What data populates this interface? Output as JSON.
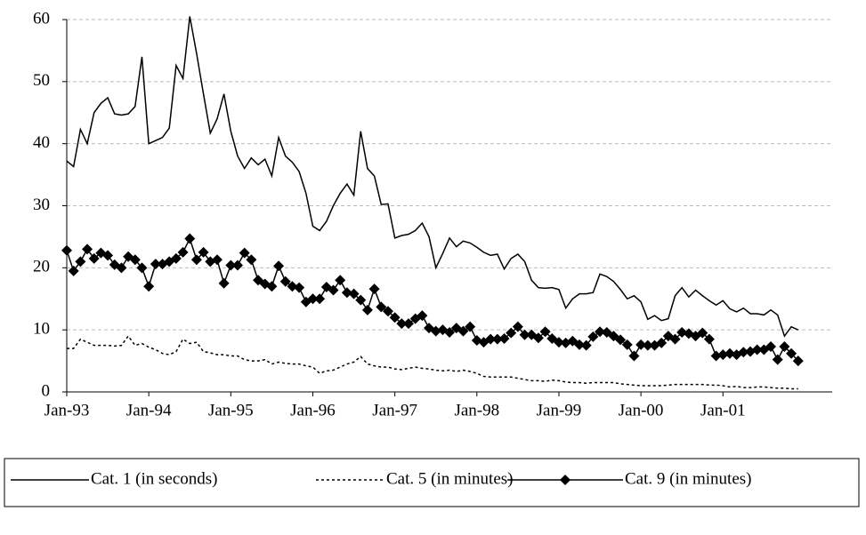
{
  "chart_data": {
    "type": "line",
    "categories": [
      "Jan-93",
      null,
      null,
      null,
      null,
      null,
      null,
      null,
      null,
      null,
      null,
      null,
      "Jan-94",
      null,
      null,
      null,
      null,
      null,
      null,
      null,
      null,
      null,
      null,
      null,
      "Jan-95",
      null,
      null,
      null,
      null,
      null,
      null,
      null,
      null,
      null,
      null,
      null,
      "Jan-96",
      null,
      null,
      null,
      null,
      null,
      null,
      null,
      null,
      null,
      null,
      null,
      "Jan-97",
      null,
      null,
      null,
      null,
      null,
      null,
      null,
      null,
      null,
      null,
      null,
      "Jan-98",
      null,
      null,
      null,
      null,
      null,
      null,
      null,
      null,
      null,
      null,
      null,
      "Jan-99",
      null,
      null,
      null,
      null,
      null,
      null,
      null,
      null,
      null,
      null,
      null,
      "Jan-00",
      null,
      null,
      null,
      null,
      null,
      null,
      null,
      null,
      null,
      null,
      null,
      "Jan-01",
      null,
      null,
      null,
      null,
      null,
      null,
      null,
      null,
      null,
      null,
      null
    ],
    "series": [
      {
        "name": "Cat. 1 (in seconds)",
        "color": "#000000",
        "dash": "solid",
        "marker": "none",
        "values": [
          37.2,
          36.3,
          42.3,
          40,
          45,
          46.5,
          47.4,
          44.8,
          44.6,
          44.8,
          46,
          54,
          40,
          40.5,
          41,
          42.5,
          52.6,
          50.5,
          60.5,
          54.5,
          48,
          41.7,
          44,
          48,
          42,
          38,
          36,
          37.7,
          36.6,
          37.5,
          34.8,
          41,
          38,
          37,
          35.5,
          32,
          26.7,
          26,
          27.5,
          30,
          32,
          33.5,
          31.7,
          42,
          36,
          34.8,
          30.2,
          30.3,
          24.8,
          25.2,
          25.4,
          26,
          27.2,
          25,
          20,
          22.3,
          24.8,
          23.4,
          24.3,
          24,
          23.3,
          22.5,
          22,
          22.2,
          19.8,
          21.5,
          22.2,
          21,
          18,
          16.8,
          16.7,
          16.8,
          16.5,
          13.5,
          15,
          15.8,
          15.8,
          16,
          19,
          18.6,
          17.8,
          16.5,
          15,
          15.5,
          14.5,
          11.7,
          12.3,
          11.5,
          11.8,
          15.5,
          16.8,
          15.3,
          16.4,
          15.5,
          14.7,
          14,
          14.7,
          13.4,
          12.9,
          13.5,
          12.6,
          12.6,
          12.4,
          13.2,
          12.4,
          9,
          10.5,
          10
        ]
      },
      {
        "name": "Cat. 5 (in minutes)",
        "color": "#000000",
        "dash": "dashed",
        "marker": "none",
        "values": [
          7,
          7,
          8.5,
          8,
          7.5,
          7.5,
          7.5,
          7.4,
          7.5,
          9,
          7.5,
          7.8,
          7.2,
          6.8,
          6.2,
          6,
          6.5,
          8.5,
          7.8,
          8,
          6.5,
          6.3,
          6,
          6,
          5.8,
          5.8,
          5.2,
          5,
          5,
          5.2,
          4.5,
          4.8,
          4.6,
          4.5,
          4.5,
          4.2,
          4,
          3,
          3.4,
          3.5,
          4,
          4.5,
          4.8,
          5.7,
          4.5,
          4.2,
          4,
          4,
          3.7,
          3.6,
          3.8,
          4,
          3.8,
          3.7,
          3.5,
          3.4,
          3.5,
          3.3,
          3.5,
          3.3,
          3,
          2.5,
          2.4,
          2.4,
          2.4,
          2.4,
          2.2,
          2,
          1.8,
          1.8,
          1.7,
          1.9,
          1.8,
          1.6,
          1.5,
          1.5,
          1.4,
          1.5,
          1.5,
          1.5,
          1.5,
          1.3,
          1.2,
          1.1,
          1,
          1,
          1,
          1,
          1.1,
          1.2,
          1.2,
          1.2,
          1.2,
          1.2,
          1.1,
          1.1,
          1,
          0.8,
          0.9,
          0.7,
          0.7,
          0.8,
          0.8,
          0.7,
          0.6,
          0.6,
          0.5,
          0.5
        ]
      },
      {
        "name": "Cat. 9 (in minutes)",
        "color": "#000000",
        "dash": "solid",
        "marker": "diamond",
        "values": [
          22.8,
          19.5,
          21,
          23,
          21.5,
          22.4,
          22,
          20.5,
          20,
          21.8,
          21.3,
          20,
          17,
          20.6,
          20.6,
          21,
          21.5,
          22.5,
          24.7,
          21.3,
          22.5,
          21,
          21.3,
          17.5,
          20.4,
          20.4,
          22.4,
          21.3,
          18,
          17.4,
          17,
          20.3,
          17.8,
          17,
          16.8,
          14.5,
          15,
          15,
          16.9,
          16.4,
          18,
          16,
          15.8,
          14.8,
          13.2,
          16.6,
          13.7,
          13,
          12,
          11,
          11,
          11.8,
          12.3,
          10.3,
          9.8,
          10,
          9.6,
          10.3,
          9.8,
          10.5,
          8.3,
          8,
          8.5,
          8.5,
          8.6,
          9.5,
          10.5,
          9.2,
          9.2,
          8.7,
          9.7,
          8.6,
          8,
          7.9,
          8.2,
          7.6,
          7.5,
          8.9,
          9.7,
          9.6,
          9,
          8.4,
          7.6,
          5.8,
          7.6,
          7.5,
          7.5,
          7.9,
          9,
          8.5,
          9.6,
          9.4,
          9,
          9.5,
          8.5,
          5.8,
          6,
          6.2,
          6,
          6.4,
          6.5,
          6.8,
          6.8,
          7.3,
          5.2,
          7.3,
          6.2,
          5
        ]
      }
    ],
    "ylim": [
      0,
      60
    ],
    "yticks": [
      0,
      10,
      20,
      30,
      40,
      50,
      60
    ],
    "grid": true,
    "legend": "bottom"
  }
}
